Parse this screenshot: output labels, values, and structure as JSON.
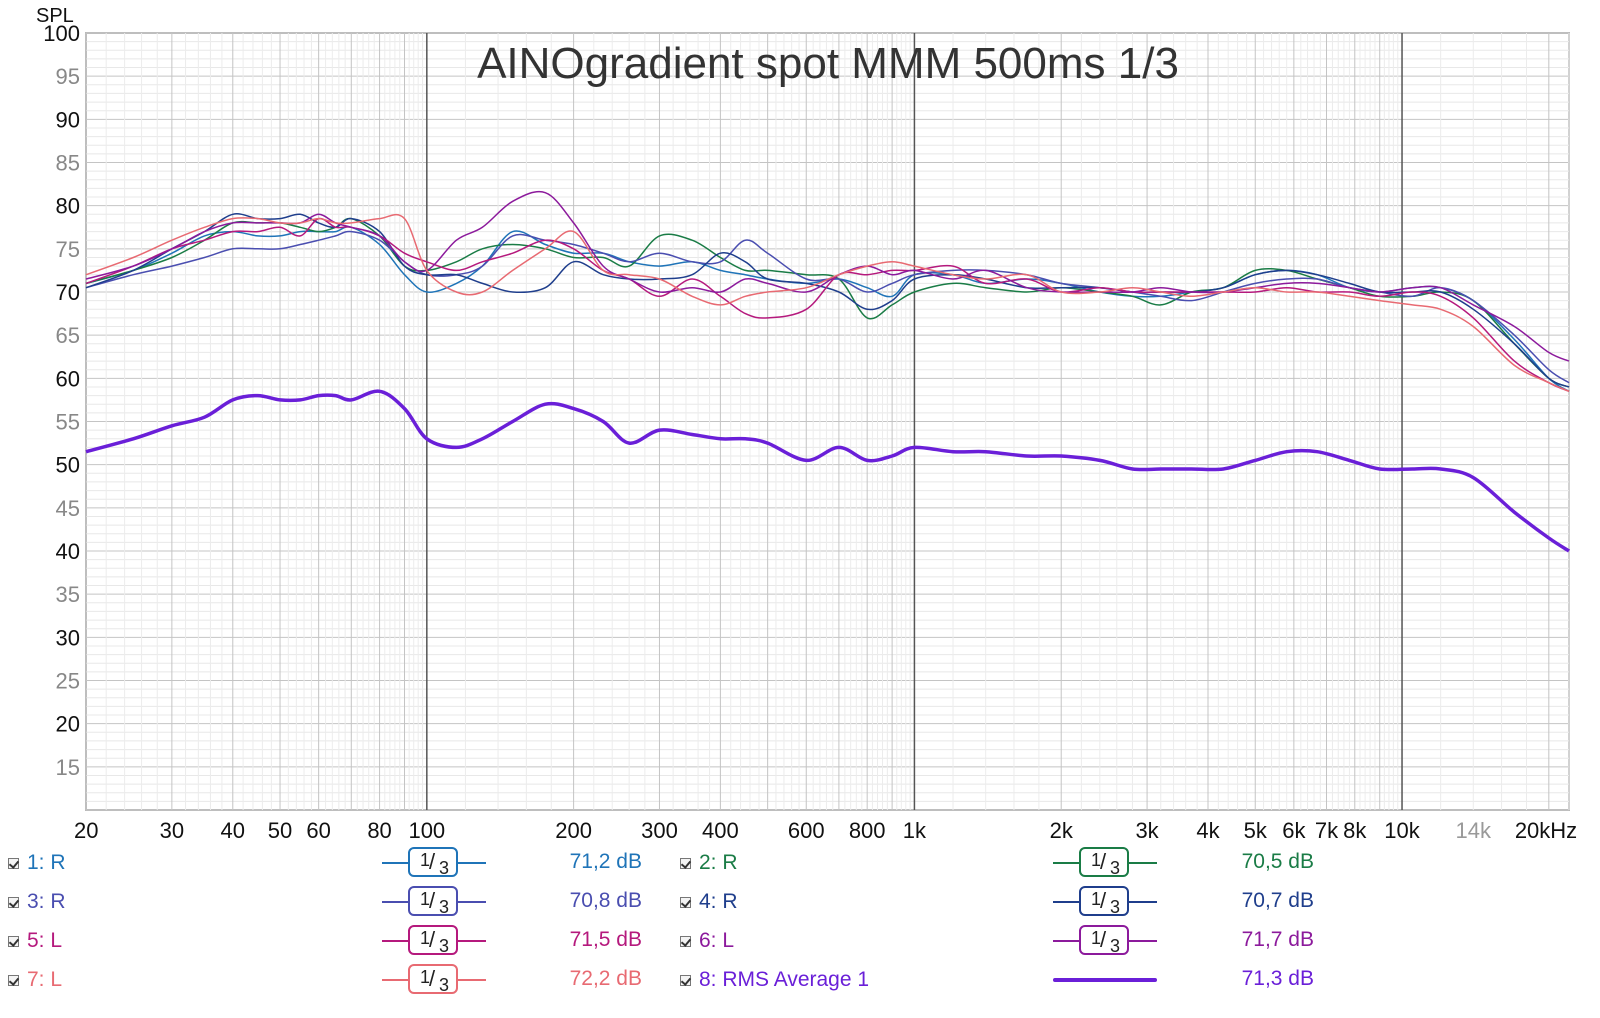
{
  "chart_data": {
    "type": "line",
    "title": "AINOgradient spot MMM 500ms 1/3",
    "ylabel": "SPL",
    "xlabel": "",
    "x_scale": "log",
    "xlim": [
      20,
      22000
    ],
    "ylim": [
      10,
      100
    ],
    "y_ticks": [
      {
        "v": 100,
        "t": "100",
        "major": true
      },
      {
        "v": 95,
        "t": "95",
        "major": false
      },
      {
        "v": 90,
        "t": "90",
        "major": true
      },
      {
        "v": 85,
        "t": "85",
        "major": false
      },
      {
        "v": 80,
        "t": "80",
        "major": true
      },
      {
        "v": 75,
        "t": "75",
        "major": false
      },
      {
        "v": 70,
        "t": "70",
        "major": true
      },
      {
        "v": 65,
        "t": "65",
        "major": false
      },
      {
        "v": 60,
        "t": "60",
        "major": true
      },
      {
        "v": 55,
        "t": "55",
        "major": false
      },
      {
        "v": 50,
        "t": "50",
        "major": true
      },
      {
        "v": 45,
        "t": "45",
        "major": false
      },
      {
        "v": 40,
        "t": "40",
        "major": true
      },
      {
        "v": 35,
        "t": "35",
        "major": false
      },
      {
        "v": 30,
        "t": "30",
        "major": true
      },
      {
        "v": 25,
        "t": "25",
        "major": false
      },
      {
        "v": 20,
        "t": "20",
        "major": true
      },
      {
        "v": 15,
        "t": "15",
        "major": false
      }
    ],
    "x_ticks": [
      {
        "v": 20,
        "t": "20"
      },
      {
        "v": 30,
        "t": "30"
      },
      {
        "v": 40,
        "t": "40"
      },
      {
        "v": 50,
        "t": "50"
      },
      {
        "v": 60,
        "t": "60"
      },
      {
        "v": 80,
        "t": "80"
      },
      {
        "v": 100,
        "t": "100"
      },
      {
        "v": 200,
        "t": "200"
      },
      {
        "v": 300,
        "t": "300"
      },
      {
        "v": 400,
        "t": "400"
      },
      {
        "v": 600,
        "t": "600"
      },
      {
        "v": 800,
        "t": "800"
      },
      {
        "v": 1000,
        "t": "1k"
      },
      {
        "v": 2000,
        "t": "2k"
      },
      {
        "v": 3000,
        "t": "3k"
      },
      {
        "v": 4000,
        "t": "4k"
      },
      {
        "v": 5000,
        "t": "5k"
      },
      {
        "v": 6000,
        "t": "6k"
      },
      {
        "v": 7000,
        "t": "7k"
      },
      {
        "v": 8000,
        "t": "8k"
      },
      {
        "v": 10000,
        "t": "10k"
      },
      {
        "v": 14000,
        "t": "14k",
        "muted": true
      },
      {
        "v": 20000,
        "t": "20kHz"
      }
    ],
    "grid": true,
    "legend_position": "bottom",
    "x": [
      20,
      25,
      30,
      35,
      40,
      45,
      50,
      55,
      60,
      65,
      70,
      80,
      90,
      100,
      115,
      130,
      150,
      175,
      200,
      230,
      260,
      300,
      350,
      400,
      450,
      500,
      600,
      700,
      800,
      900,
      1000,
      1200,
      1400,
      1700,
      2000,
      2400,
      2800,
      3200,
      3700,
      4300,
      5000,
      5800,
      6700,
      7800,
      9000,
      10500,
      12000,
      14000,
      17000,
      20000,
      22000
    ],
    "series": [
      {
        "name": "1: R",
        "color": "#1f74b8",
        "width": 1.5,
        "values": [
          71,
          72.5,
          74.5,
          76.5,
          77,
          76.5,
          76.5,
          77,
          77,
          77,
          77.5,
          75.5,
          72,
          70,
          71,
          73,
          77,
          75.5,
          74.5,
          74.5,
          73.5,
          73,
          73.5,
          72.5,
          72,
          71.5,
          71,
          71.5,
          70.5,
          69.5,
          72,
          72,
          71,
          71.5,
          71,
          70,
          69.5,
          69.5,
          70,
          70.5,
          72,
          72.5,
          72,
          70.5,
          70,
          70.5,
          70.5,
          69,
          64.5,
          60,
          58.5
        ]
      },
      {
        "name": "2: R",
        "color": "#1a7c46",
        "width": 1.5,
        "values": [
          71,
          72.5,
          74,
          76,
          78,
          78,
          78,
          77.5,
          77,
          77.5,
          78.5,
          76.5,
          73,
          72.5,
          73.5,
          75,
          75.5,
          75,
          74,
          74,
          73,
          76.5,
          76,
          74,
          72.5,
          72.5,
          72,
          71.5,
          67,
          68.5,
          70,
          71,
          70.5,
          70,
          70.5,
          70,
          69.5,
          68.5,
          70,
          70.5,
          72.5,
          72.5,
          71.5,
          70.5,
          69.5,
          69.5,
          70,
          69,
          64,
          60,
          59
        ]
      },
      {
        "name": "3: R",
        "color": "#4a4eb0",
        "width": 1.5,
        "values": [
          70.5,
          72,
          73,
          74,
          75,
          75,
          75,
          75.5,
          76,
          76.5,
          77,
          76,
          73.5,
          72,
          72,
          73,
          76.5,
          76,
          75.5,
          74.5,
          73.5,
          74.5,
          73.5,
          73.5,
          76,
          74.5,
          71.5,
          71.5,
          70,
          71,
          72,
          72.5,
          72.5,
          72,
          71,
          70.5,
          70,
          69.5,
          69,
          70,
          71,
          71.5,
          71.5,
          70.5,
          70,
          69.5,
          70.5,
          69,
          65,
          61,
          59.5
        ]
      },
      {
        "name": "4: R",
        "color": "#1f3e8c",
        "width": 1.5,
        "values": [
          70.5,
          72.5,
          75,
          77,
          79,
          78.5,
          78.5,
          79,
          78,
          77.5,
          78.5,
          77,
          73,
          72,
          72,
          71,
          70,
          70.5,
          73.5,
          72,
          71.5,
          71.5,
          72,
          74.5,
          73.5,
          71.5,
          71,
          70,
          68,
          69,
          71.5,
          72,
          71.5,
          70.5,
          70.5,
          70.5,
          70,
          70,
          70,
          70.5,
          72,
          72.5,
          72,
          71,
          70,
          70,
          70,
          68,
          64,
          60,
          59
        ]
      },
      {
        "name": "5: L",
        "color": "#b5197d",
        "width": 1.5,
        "values": [
          71,
          73,
          75,
          76,
          77,
          77,
          77.5,
          76.5,
          78.5,
          77.5,
          77.5,
          76.5,
          74.5,
          73.5,
          72.5,
          73.5,
          74.5,
          76,
          75,
          72.5,
          71.5,
          69.5,
          71.5,
          69.5,
          67.5,
          67,
          68,
          72,
          72,
          72.5,
          72.5,
          73,
          71,
          71.5,
          70,
          70.5,
          70,
          70,
          70,
          70,
          70,
          70.5,
          70,
          70,
          69.5,
          70,
          69.5,
          67,
          62,
          59.5,
          58.5
        ]
      },
      {
        "name": "6: L",
        "color": "#8c1a9c",
        "width": 1.5,
        "values": [
          71.5,
          73,
          75,
          77,
          78,
          78,
          78,
          78,
          79,
          78,
          77.5,
          76.5,
          73.5,
          72.5,
          76,
          77.5,
          80.5,
          81.5,
          78,
          73,
          71.5,
          70,
          70.5,
          70,
          71.5,
          71,
          70,
          72,
          73,
          72,
          72.5,
          71.5,
          72.5,
          70.5,
          70,
          70,
          70,
          70.5,
          70,
          70,
          70.5,
          71,
          71,
          70.5,
          70,
          70.5,
          70.5,
          68.5,
          66,
          63,
          62
        ]
      },
      {
        "name": "7: L",
        "color": "#e86a72",
        "width": 1.5,
        "values": [
          72,
          74,
          76,
          77.5,
          78.5,
          78.5,
          78,
          78,
          78.5,
          78,
          78,
          78.5,
          78.5,
          72.5,
          70,
          70,
          72.5,
          75,
          77,
          72.5,
          72,
          71.5,
          69.5,
          68.5,
          69.5,
          70,
          70.5,
          72,
          73,
          73.5,
          73,
          72,
          71.5,
          72,
          70,
          70,
          70.5,
          70,
          69.5,
          70,
          70.5,
          70,
          70,
          69.5,
          69,
          68.5,
          68,
          66,
          61.5,
          59.5,
          58.5
        ]
      },
      {
        "name": "8: RMS Average 1",
        "color": "#6a1fd8",
        "width": 3.5,
        "values": [
          51.5,
          53,
          54.5,
          55.5,
          57.5,
          58,
          57.5,
          57.5,
          58,
          58,
          57.5,
          58.5,
          56.5,
          53,
          52,
          53,
          55,
          57,
          56.5,
          55,
          52.5,
          54,
          53.5,
          53,
          53,
          52.5,
          50.5,
          52,
          50.5,
          51,
          52,
          51.5,
          51.5,
          51,
          51,
          50.5,
          49.5,
          49.5,
          49.5,
          49.5,
          50.5,
          51.5,
          51.5,
          50.5,
          49.5,
          49.5,
          49.5,
          48.5,
          44.5,
          41.5,
          40
        ]
      }
    ]
  },
  "legend": [
    {
      "name": "1: R",
      "smoothing": "1/3",
      "level": "71,2 dB",
      "color": "#1f74b8",
      "avg": false
    },
    {
      "name": "2: R",
      "smoothing": "1/3",
      "level": "70,5 dB",
      "color": "#1a7c46",
      "avg": false
    },
    {
      "name": "3: R",
      "smoothing": "1/3",
      "level": "70,8 dB",
      "color": "#4a4eb0",
      "avg": false
    },
    {
      "name": "4: R",
      "smoothing": "1/3",
      "level": "70,7 dB",
      "color": "#1f3e8c",
      "avg": false
    },
    {
      "name": "5: L",
      "smoothing": "1/3",
      "level": "71,5 dB",
      "color": "#b5197d",
      "avg": false
    },
    {
      "name": "6: L",
      "smoothing": "1/3",
      "level": "71,7 dB",
      "color": "#8c1a9c",
      "avg": false
    },
    {
      "name": "7: L",
      "smoothing": "1/3",
      "level": "72,2 dB",
      "color": "#e86a72",
      "avg": false
    },
    {
      "name": "8: RMS Average 1",
      "smoothing": "",
      "level": "71,3 dB",
      "color": "#6a1fd8",
      "avg": true
    }
  ]
}
